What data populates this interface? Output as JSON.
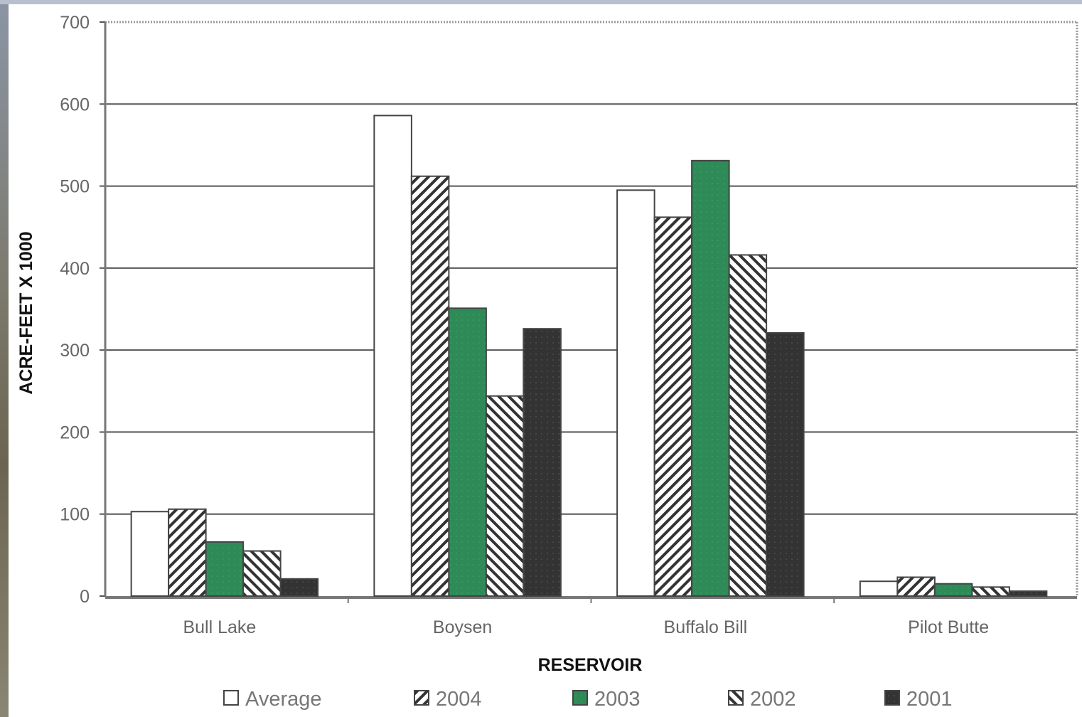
{
  "chart_data": {
    "type": "bar",
    "xlabel": "RESERVOIR",
    "ylabel": "ACRE-FEET X 1000",
    "ylim": [
      0,
      700
    ],
    "yticks": [
      0,
      100,
      200,
      300,
      400,
      500,
      600,
      700
    ],
    "grid": true,
    "legend_position": "bottom",
    "categories": [
      "Bull Lake",
      "Boysen",
      "Buffalo Bill",
      "Pilot Butte"
    ],
    "series": [
      {
        "name": "Average",
        "values": [
          103,
          586,
          495,
          18
        ],
        "pattern": "solid-white"
      },
      {
        "name": "2004",
        "values": [
          106,
          512,
          462,
          23
        ],
        "pattern": "diagonal-hatch"
      },
      {
        "name": "2003",
        "values": [
          66,
          351,
          531,
          15
        ],
        "pattern": "solid-green",
        "color": "#2e8b57"
      },
      {
        "name": "2002",
        "values": [
          55,
          244,
          416,
          11
        ],
        "pattern": "reverse-hatch"
      },
      {
        "name": "2001",
        "values": [
          21,
          326,
          321,
          6
        ],
        "pattern": "solid-dark",
        "color": "#333333"
      }
    ]
  }
}
